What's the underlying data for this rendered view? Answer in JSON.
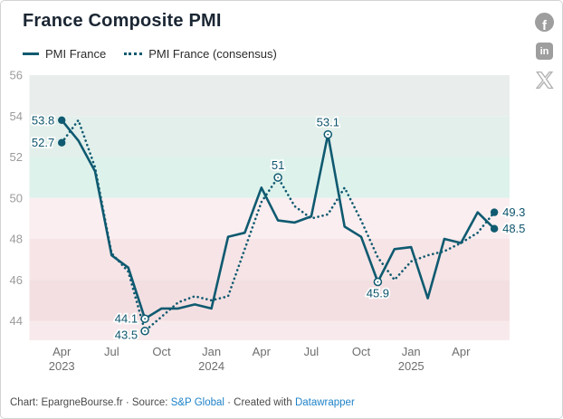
{
  "title": "France Composite PMI",
  "legend": [
    {
      "label": "PMI France",
      "style": "solid"
    },
    {
      "label": "PMI France (consensus)",
      "style": "dotted"
    }
  ],
  "icons": {
    "facebook_glyph": "f",
    "linkedin_glyph": "in"
  },
  "footer": {
    "part1": "Chart: EpargneBourse.fr · Source: ",
    "source_link": "S&P Global",
    "part2": " · Created with ",
    "created_link": "Datawrapper"
  },
  "colors": {
    "line": "#0f5a70",
    "label_text": "#0e556c",
    "axis_text": "#9b9b9b",
    "xaxis_text": "#6e6e6e",
    "link_blue": "#1e82c8"
  },
  "chart_data": {
    "type": "line",
    "title": "France Composite PMI",
    "x_monthly": [
      "2023-04",
      "2023-05",
      "2023-06",
      "2023-07",
      "2023-08",
      "2023-09",
      "2023-10",
      "2023-11",
      "2023-12",
      "2024-01",
      "2024-02",
      "2024-03",
      "2024-04",
      "2024-05",
      "2024-06",
      "2024-07",
      "2024-08",
      "2024-09",
      "2024-10",
      "2024-11",
      "2024-12",
      "2025-01",
      "2025-02",
      "2025-03",
      "2025-04",
      "2025-05",
      "2025-06"
    ],
    "series": [
      {
        "name": "PMI France",
        "style": "solid",
        "values": [
          53.8,
          52.8,
          51.3,
          47.2,
          46.6,
          44.1,
          44.6,
          44.6,
          44.8,
          44.6,
          48.1,
          48.3,
          50.5,
          48.9,
          48.8,
          49.1,
          53.1,
          48.6,
          48.1,
          45.9,
          47.5,
          47.6,
          45.1,
          48.0,
          47.8,
          49.3,
          48.5
        ]
      },
      {
        "name": "PMI France (consensus)",
        "style": "dotted",
        "values": [
          52.7,
          53.8,
          51.5,
          47.3,
          46.4,
          43.5,
          44.2,
          44.9,
          45.2,
          45.0,
          45.2,
          47.5,
          49.8,
          51.0,
          49.6,
          49.0,
          49.2,
          50.5,
          48.9,
          47.1,
          46.0,
          46.9,
          47.2,
          47.4,
          47.8,
          48.3,
          49.3
        ]
      }
    ],
    "ylim": [
      43.05,
      56
    ],
    "yticks": [
      56,
      54,
      52,
      50,
      48,
      46,
      44
    ],
    "xticks": [
      {
        "m": 0,
        "label": "Apr",
        "year": "2023"
      },
      {
        "m": 3,
        "label": "Jul"
      },
      {
        "m": 6,
        "label": "Oct"
      },
      {
        "m": 9,
        "label": "Jan",
        "year": "2024"
      },
      {
        "m": 12,
        "label": "Apr"
      },
      {
        "m": 15,
        "label": "Jul"
      },
      {
        "m": 18,
        "label": "Oct"
      },
      {
        "m": 21,
        "label": "Jan",
        "year": "2025"
      },
      {
        "m": 24,
        "label": "Apr"
      }
    ],
    "bands": [
      {
        "from": 54,
        "to": 56,
        "color": "#e9eeec"
      },
      {
        "from": 52,
        "to": 54,
        "color": "#e3efeb"
      },
      {
        "from": 50,
        "to": 52,
        "color": "#def2ec"
      },
      {
        "from": 48,
        "to": 50,
        "color": "#faeef0"
      },
      {
        "from": 46,
        "to": 48,
        "color": "#f6e4e6"
      },
      {
        "from": 44,
        "to": 46,
        "color": "#f3dfe2"
      },
      {
        "from": 43.05,
        "to": 44,
        "color": "#f8eaec"
      }
    ],
    "annotations": [
      {
        "series": 0,
        "index": 0,
        "text": "53.8",
        "marker": "filled",
        "side": "left"
      },
      {
        "series": 1,
        "index": 0,
        "text": "52.7",
        "marker": "filled",
        "side": "left"
      },
      {
        "series": 0,
        "index": 5,
        "text": "44.1",
        "marker": "open",
        "side": "left"
      },
      {
        "series": 1,
        "index": 5,
        "text": "43.5",
        "marker": "open",
        "side": "left",
        "dy": 4
      },
      {
        "series": 1,
        "index": 13,
        "text": "51",
        "marker": "open",
        "side": "above"
      },
      {
        "series": 0,
        "index": 16,
        "text": "53.1",
        "marker": "open",
        "side": "above"
      },
      {
        "series": 0,
        "index": 19,
        "text": "45.9",
        "marker": "open",
        "side": "below"
      },
      {
        "series": 1,
        "index": 26,
        "text": "49.3",
        "marker": "filled",
        "side": "right"
      },
      {
        "series": 0,
        "index": 26,
        "text": "48.5",
        "marker": "filled",
        "side": "right"
      }
    ],
    "line_color": "#0f5a70",
    "legend_position": "top-left",
    "grid": "bands"
  }
}
